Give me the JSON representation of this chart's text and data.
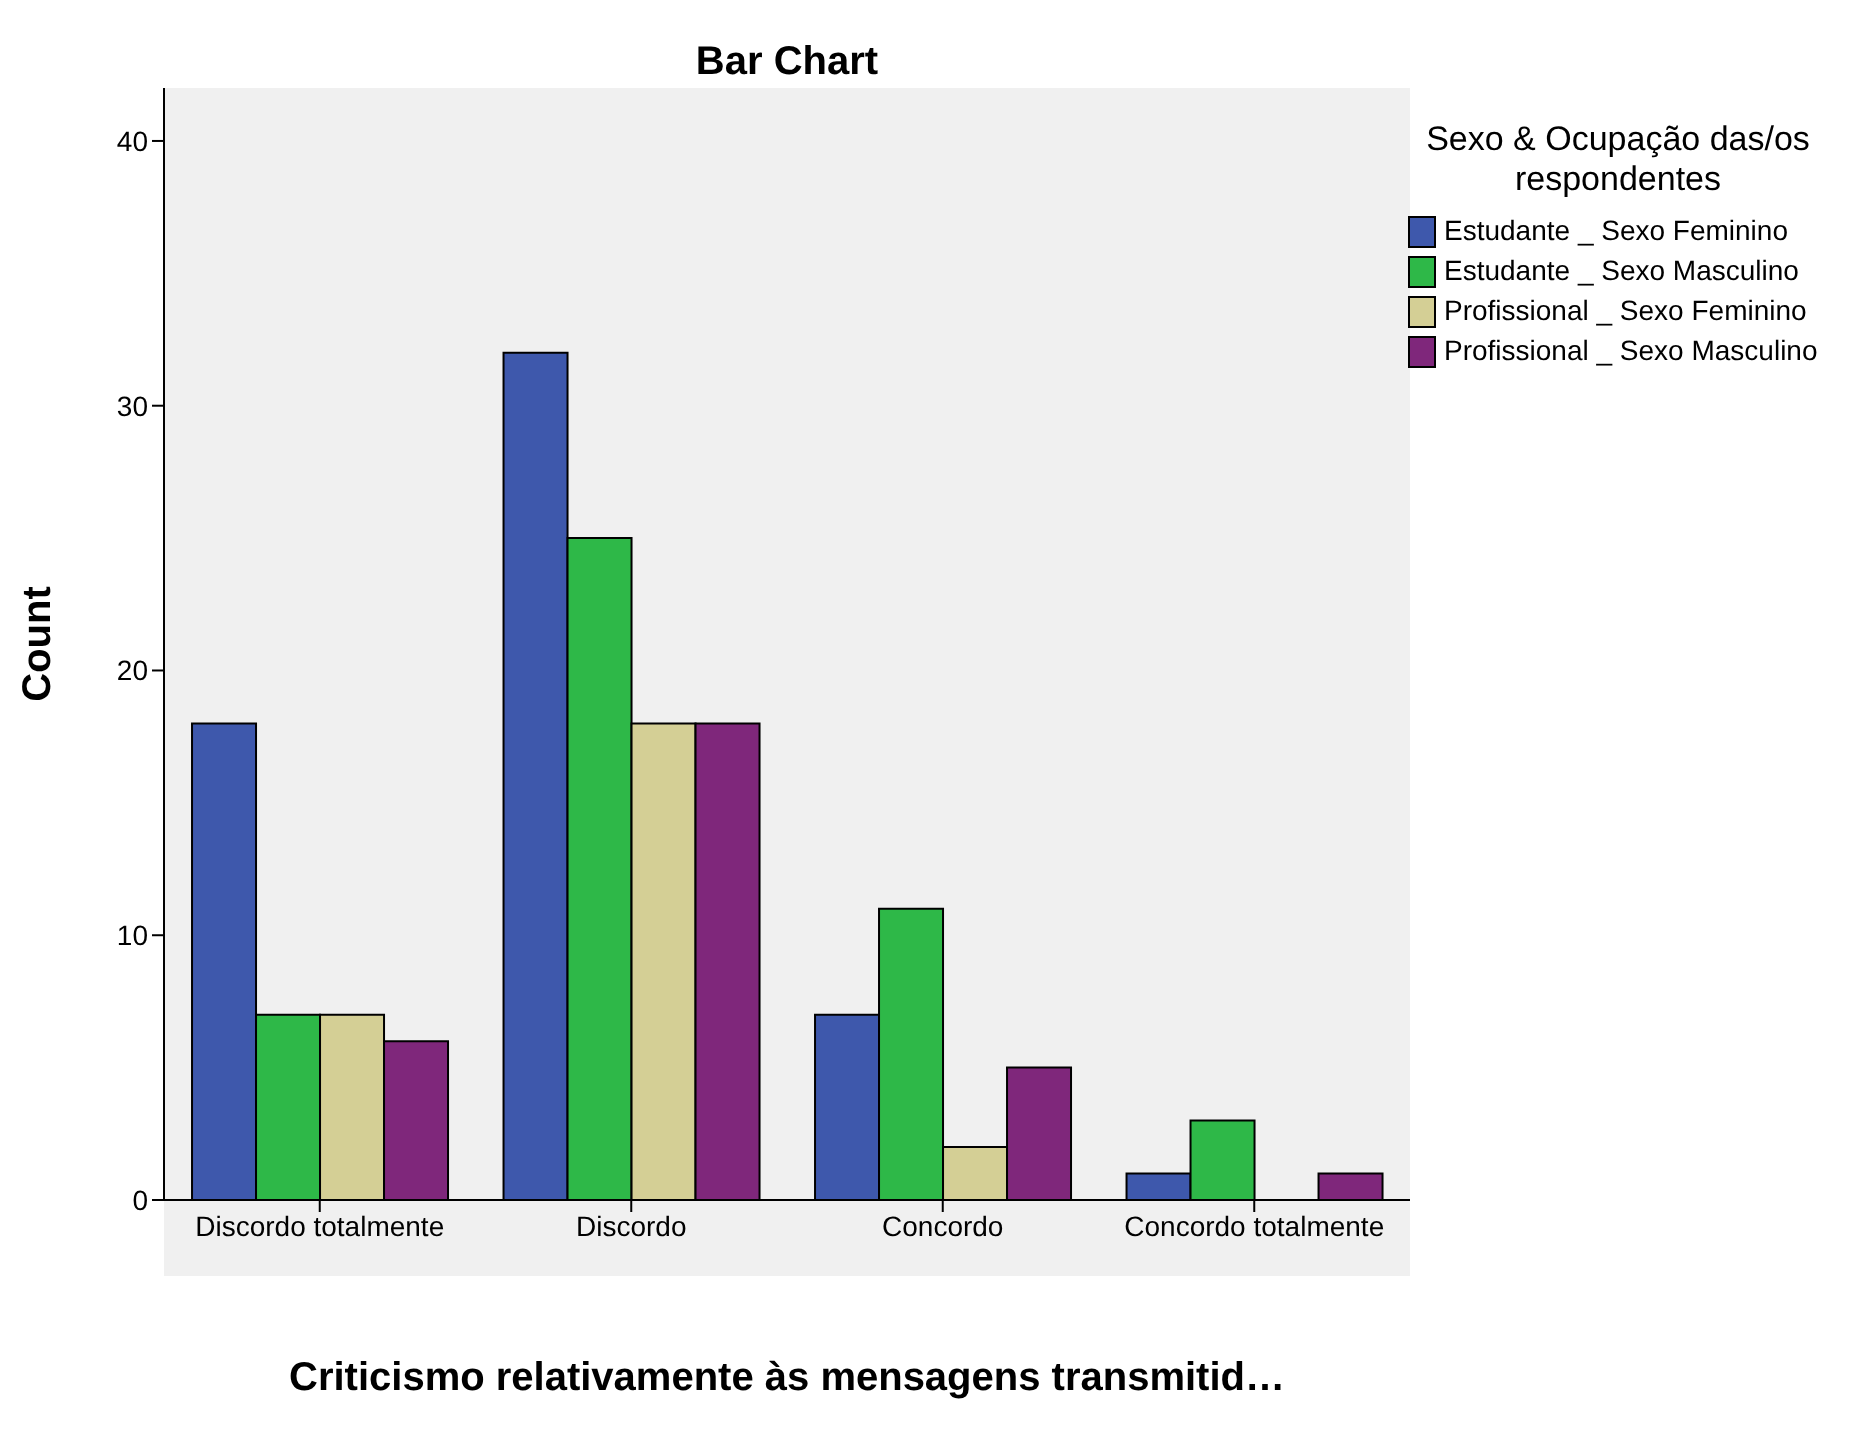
{
  "chart_data": {
    "type": "bar",
    "title": "Bar Chart",
    "xlabel": "Criticismo relativamente às mensagens transmitid…",
    "ylabel": "Count",
    "legend_title": "Sexo & Ocupação das/os respondentes",
    "categories": [
      "Discordo totalmente",
      "Discordo",
      "Concordo",
      "Concordo totalmente"
    ],
    "series": [
      {
        "name": "Estudante _ Sexo Feminino",
        "color": "#3e58ac",
        "values": [
          18,
          32,
          7,
          1
        ]
      },
      {
        "name": "Estudante _ Sexo Masculino",
        "color": "#2eb848",
        "values": [
          7,
          25,
          11,
          3
        ]
      },
      {
        "name": "Profissional _ Sexo Feminino",
        "color": "#d4cf95",
        "values": [
          7,
          18,
          2,
          0
        ]
      },
      {
        "name": "Profissional _ Sexo Masculino",
        "color": "#7f277b",
        "values": [
          6,
          18,
          5,
          1
        ]
      }
    ],
    "ylim": [
      0,
      42
    ],
    "yticks": [
      0,
      10,
      20,
      30,
      40
    ],
    "grid": false,
    "legend": "top right"
  }
}
